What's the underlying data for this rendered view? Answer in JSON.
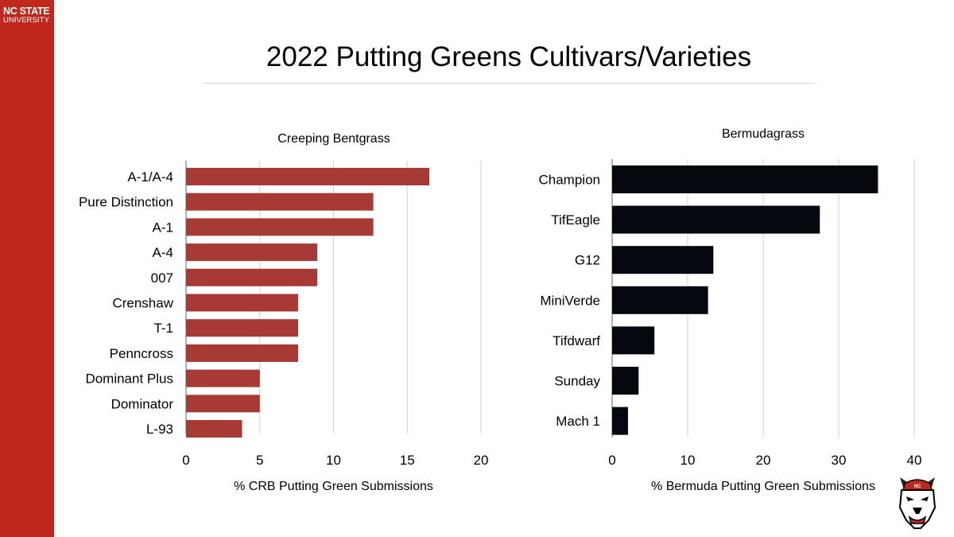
{
  "brand": {
    "logo_line1": "NC STATE",
    "logo_line2": "UNIVERSITY",
    "color": "#c0281e"
  },
  "slide_title": "2022 Putting Greens Cultivars/Varieties",
  "chart_data": [
    {
      "type": "bar",
      "orientation": "horizontal",
      "title": "Creeping Bentgrass",
      "xlabel": "% CRB Putting Green Submissions",
      "ylabel": "",
      "categories": [
        "A-1/A-4",
        "Pure Distinction",
        "A-1",
        "A-4",
        "007",
        "Crenshaw",
        "T-1",
        "Penncross",
        "Dominant Plus",
        "Dominator",
        "L-93"
      ],
      "values": [
        16.5,
        12.7,
        12.7,
        8.9,
        8.9,
        7.6,
        7.6,
        7.6,
        5.0,
        5.0,
        3.8
      ],
      "xlim": [
        0,
        20
      ],
      "ticks": [
        0,
        5,
        10,
        15,
        20
      ],
      "grid": true,
      "color": "#a83a36"
    },
    {
      "type": "bar",
      "orientation": "horizontal",
      "title": "Bermudagrass",
      "xlabel": "% Bermuda Putting Green Submissions",
      "ylabel": "",
      "categories": [
        "Champion",
        "TifEagle",
        "G12",
        "MiniVerde",
        "Tifdwarf",
        "Sunday",
        "Mach 1"
      ],
      "values": [
        35.2,
        27.5,
        13.4,
        12.7,
        5.6,
        3.5,
        2.1
      ],
      "xlim": [
        0,
        40
      ],
      "ticks": [
        0,
        10,
        20,
        30,
        40
      ],
      "grid": true,
      "color": "#05080f"
    }
  ]
}
